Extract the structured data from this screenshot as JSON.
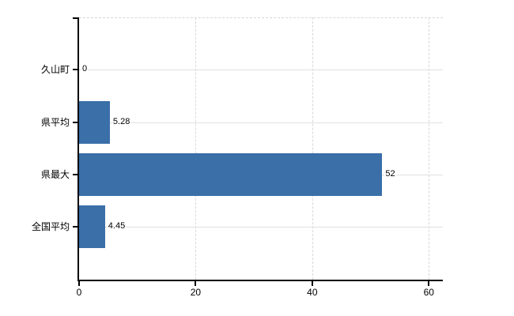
{
  "chart_data": {
    "type": "bar",
    "orientation": "horizontal",
    "title": "",
    "categories": [
      "久山町",
      "県平均",
      "県最大",
      "全国平均"
    ],
    "values": [
      0,
      5.28,
      52,
      4.45
    ],
    "value_labels": [
      "0",
      "5.28",
      "52",
      "4.45"
    ],
    "xticks": [
      0,
      20,
      40,
      60
    ],
    "xtick_labels": [
      "0",
      "20",
      "40",
      "60"
    ],
    "xlim": [
      0,
      62.4
    ],
    "grid": "on",
    "legend": "none",
    "colors": {
      "bar": "#3a6fa8",
      "axis": "#000000",
      "horizontal_gridline": "#dde3dd",
      "vertical_gridline": "#d9d9d9",
      "top_border": "#d6d6d6",
      "text": "#000000",
      "background": "#ffffff"
    }
  }
}
